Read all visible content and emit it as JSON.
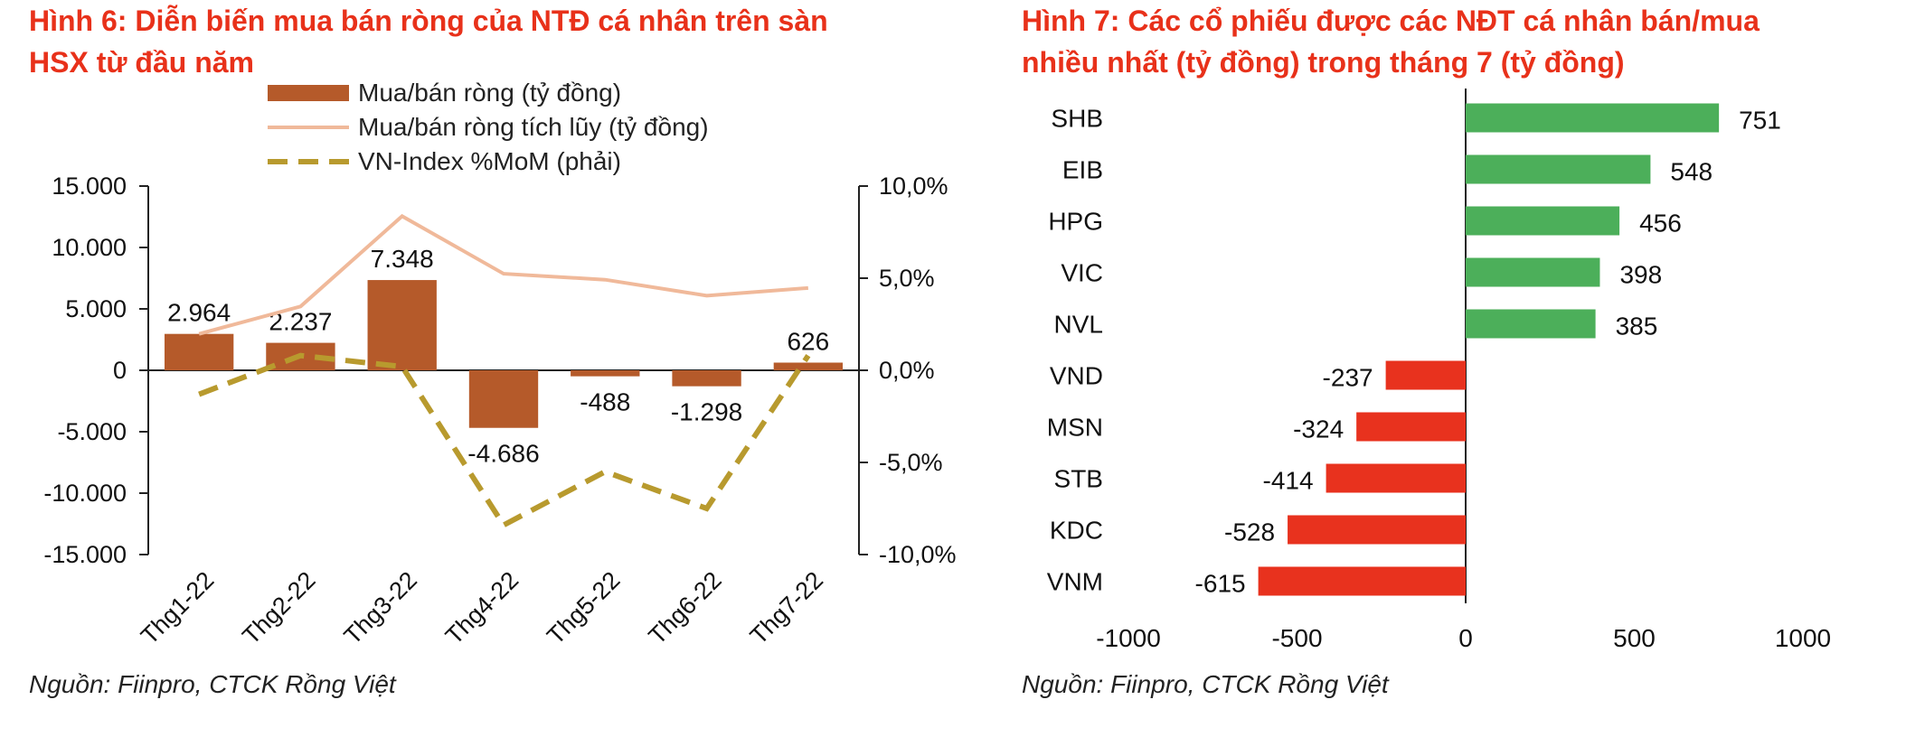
{
  "left": {
    "title_line1": "Hình 6: Diễn biến mua bán ròng của NTĐ cá nhân trên sàn",
    "title_line2": "HSX từ đầu năm",
    "source": "Nguồn: Fiinpro, CTCK Rồng Việt",
    "legend": {
      "bar": "Mua/bán ròng (tỷ đồng)",
      "line": "Mua/bán ròng tích lũy (tỷ đồng)",
      "dash": "VN-Index %MoM (phải)"
    }
  },
  "right": {
    "title_line1": "Hình 7: Các cổ phiếu được các NĐT cá nhân bán/mua",
    "title_line2": "nhiều nhất (tỷ đồng) trong tháng 7 (tỷ đồng)",
    "source": "Nguồn: Fiinpro, CTCK Rồng Việt"
  },
  "chart_data": [
    {
      "type": "bar",
      "title": "Hình 6: Diễn biến mua bán ròng của NTĐ cá nhân trên sàn HSX từ đầu năm",
      "categories": [
        "Thg1-22",
        "Thg2-22",
        "Thg3-22",
        "Thg4-22",
        "Thg5-22",
        "Thg6-22",
        "Thg7-22"
      ],
      "series": [
        {
          "name": "Mua/bán ròng (tỷ đồng)",
          "kind": "bar",
          "axis": "left",
          "values": [
            2964,
            2237,
            7348,
            -4686,
            -488,
            -1298,
            626
          ],
          "labels": [
            "2.964",
            "2.237",
            "7.348",
            "-4.686",
            "-488",
            "-1.298",
            "626"
          ],
          "color": "#b55a2a"
        },
        {
          "name": "Mua/bán ròng tích lũy (tỷ đồng)",
          "kind": "line",
          "axis": "left",
          "values": [
            2964,
            5201,
            12549,
            7863,
            7375,
            6077,
            6703
          ],
          "color": "#f0b99a"
        },
        {
          "name": "VN-Index %MoM (phải)",
          "kind": "dashed-line",
          "axis": "right",
          "values": [
            -1.3,
            0.8,
            0.2,
            -8.4,
            -5.5,
            -7.5,
            0.8
          ],
          "color": "#b89a2e"
        }
      ],
      "ylim_left": [
        -15000,
        15000
      ],
      "yticks_left": [
        15000,
        10000,
        5000,
        0,
        -5000,
        -10000,
        -15000
      ],
      "ytick_labels_left": [
        "15.000",
        "10.000",
        "5.000",
        "0",
        "-5.000",
        "-10.000",
        "-15.000"
      ],
      "ylim_right": [
        -10,
        10
      ],
      "yticks_right": [
        10,
        5,
        0,
        -5,
        -10
      ],
      "ytick_labels_right": [
        "10,0%",
        "5,0%",
        "0,0%",
        "-5,0%",
        "-10,0%"
      ],
      "legend_position": "top-left"
    },
    {
      "type": "bar",
      "orientation": "horizontal",
      "title": "Hình 7: Các cổ phiếu được các NĐT cá nhân bán/mua nhiều nhất (tỷ đồng) trong tháng 7 (tỷ đồng)",
      "categories": [
        "SHB",
        "EIB",
        "HPG",
        "VIC",
        "NVL",
        "VND",
        "MSN",
        "STB",
        "KDC",
        "VNM"
      ],
      "values": [
        751,
        548,
        456,
        398,
        385,
        -237,
        -324,
        -414,
        -528,
        -615
      ],
      "labels": [
        "751",
        "548",
        "456",
        "398",
        "385",
        "-237",
        "-324",
        "-414",
        "-528",
        "-615"
      ],
      "positive_color": "#4caf5a",
      "negative_color": "#e8321e",
      "xlim": [
        -1000,
        1000
      ],
      "xticks": [
        -1000,
        -500,
        0,
        500,
        1000
      ],
      "xtick_labels": [
        "-1000",
        "-500",
        "0",
        "500",
        "1000"
      ]
    }
  ]
}
